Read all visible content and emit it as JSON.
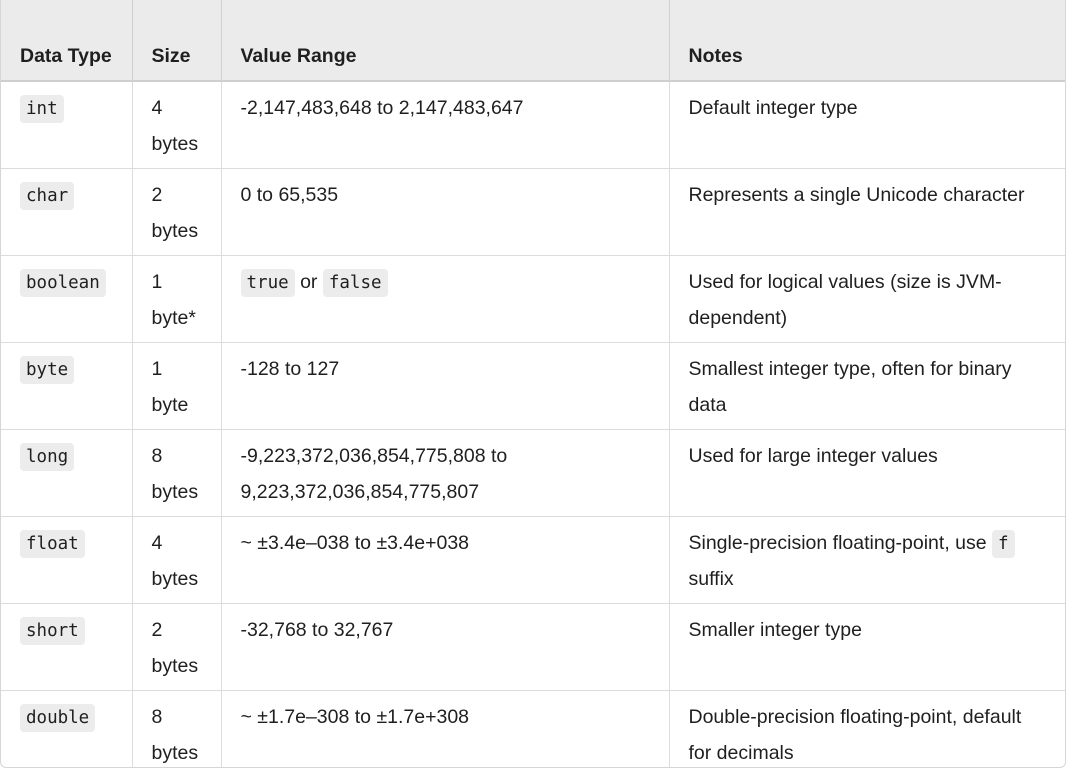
{
  "headers": {
    "type": "Data Type",
    "size": "Size",
    "range": "Value Range",
    "notes": "Notes"
  },
  "rows": [
    {
      "type": "int",
      "size": "4 bytes",
      "range": "-2,147,483,648 to 2,147,483,647",
      "notes": "Default integer type"
    },
    {
      "type": "char",
      "size": "2 bytes",
      "range": "0 to 65,535",
      "notes": "Represents a single Unicode character"
    },
    {
      "type": "boolean",
      "size": "1 byte*",
      "range_true": "true",
      "range_or": "or",
      "range_false": "false",
      "notes": "Used for logical values (size is JVM-dependent)"
    },
    {
      "type": "byte",
      "size": "1 byte",
      "range": "-128 to 127",
      "notes": "Smallest integer type, often for binary data"
    },
    {
      "type": "long",
      "size": "8 bytes",
      "range": "-9,223,372,036,854,775,808 to 9,223,372,036,854,775,807",
      "notes": "Used for large integer values"
    },
    {
      "type": "float",
      "size": "4 bytes",
      "range": "~ ±3.4e–038 to ±3.4e+038",
      "notes_pre": "Single-precision floating-point, use",
      "notes_code": "f",
      "notes_post": "suffix"
    },
    {
      "type": "short",
      "size": "2 bytes",
      "range": "-32,768 to 32,767",
      "notes": "Smaller integer type"
    },
    {
      "type": "double",
      "size": "8 bytes",
      "range": "~ ±1.7e–308 to ±1.7e+308",
      "notes": "Double-precision floating-point, default for decimals"
    }
  ]
}
